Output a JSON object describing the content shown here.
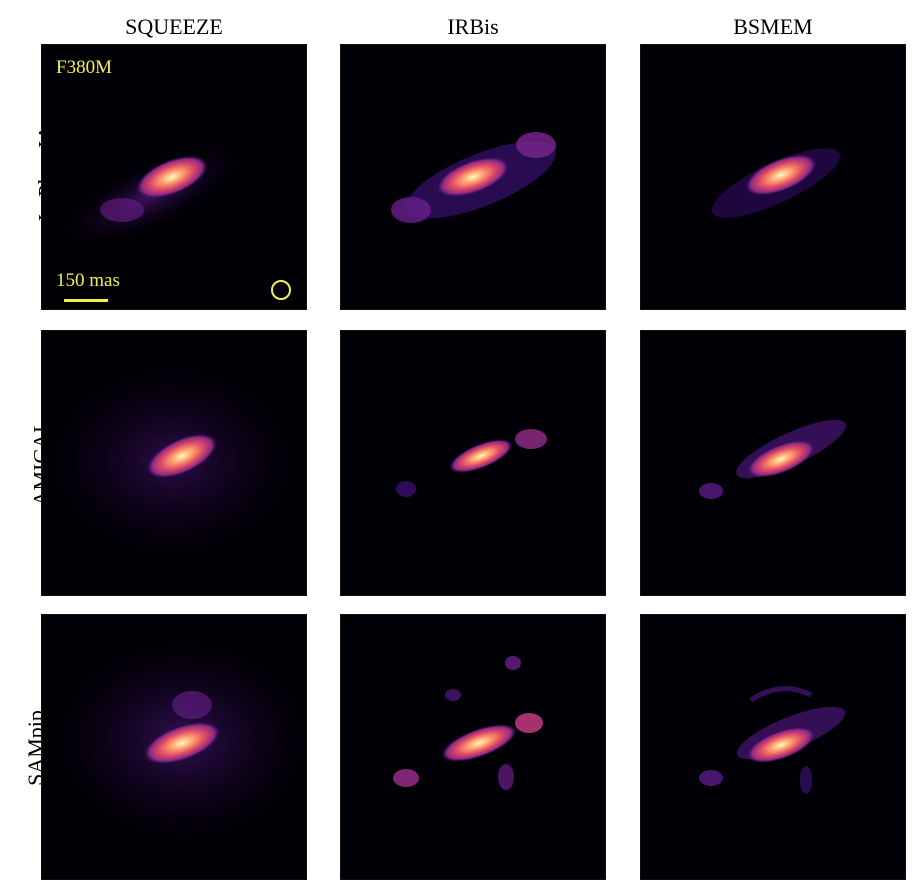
{
  "columns": [
    "SQUEEZE",
    "IRBis",
    "BSMEM"
  ],
  "rows": [
    "ImPlaneIA",
    "AMICAL",
    "SAMpip"
  ],
  "annotations": {
    "filter": "F380M",
    "scale_bar_label": "150 mas",
    "beam_icon": "circle-beam"
  },
  "colors": {
    "background": "#020007",
    "annotation": "#f3f04a",
    "colormap": [
      "#000004",
      "#3b0f70",
      "#8c2981",
      "#de4968",
      "#fe9f6d",
      "#fcfdbf"
    ]
  }
}
